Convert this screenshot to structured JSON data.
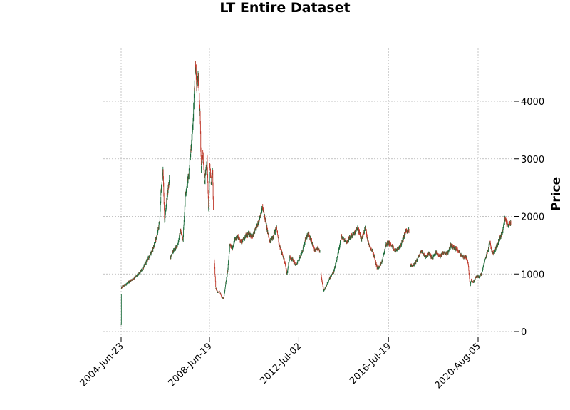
{
  "chart_data": {
    "type": "candlestick",
    "title": "LT Entire Dataset",
    "xlabel": "",
    "ylabel": "Price",
    "ylim": [
      -50,
      4900
    ],
    "y_ticks": [
      0,
      1000,
      2000,
      3000,
      4000
    ],
    "y_axis_position": "right",
    "x_range": [
      "2003-08-26",
      "2022-01-31"
    ],
    "x_ticks": [
      {
        "date": "2004-06-23",
        "label": "2004-Jun-23"
      },
      {
        "date": "2008-06-19",
        "label": "2008-Jun-19"
      },
      {
        "date": "2012-07-02",
        "label": "2012-Jul-02"
      },
      {
        "date": "2016-07-19",
        "label": "2016-Jul-19"
      },
      {
        "date": "2020-08-05",
        "label": "2020-Aug-05"
      }
    ],
    "grid": true,
    "colors": {
      "up": "#1b6b3a",
      "down": "#c0392b",
      "grid": "#b0b0b0"
    },
    "price_points": [
      [
        "2004-06-23",
        120,
        true
      ],
      [
        "2004-06-28",
        760,
        false
      ],
      [
        "2004-07-25",
        790,
        false
      ],
      [
        "2004-09-10",
        820,
        false
      ],
      [
        "2004-11-20",
        880,
        false
      ],
      [
        "2005-02-01",
        940,
        false
      ],
      [
        "2005-04-10",
        1000,
        false
      ],
      [
        "2005-06-20",
        1100,
        false
      ],
      [
        "2005-09-01",
        1250,
        false
      ],
      [
        "2005-11-15",
        1400,
        false
      ],
      [
        "2006-01-20",
        1600,
        false
      ],
      [
        "2006-03-20",
        1900,
        false
      ],
      [
        "2006-04-10",
        2400,
        false
      ],
      [
        "2006-05-15",
        2800,
        false
      ],
      [
        "2006-06-10",
        1900,
        false
      ],
      [
        "2006-07-15",
        2300,
        false
      ],
      [
        "2006-08-30",
        2650,
        false
      ],
      [
        "2006-09-10",
        1280,
        true
      ],
      [
        "2006-11-01",
        1400,
        false
      ],
      [
        "2007-01-10",
        1500,
        false
      ],
      [
        "2007-02-28",
        1750,
        false
      ],
      [
        "2007-04-10",
        1600,
        false
      ],
      [
        "2007-05-20",
        2400,
        false
      ],
      [
        "2007-07-10",
        2700,
        false
      ],
      [
        "2007-08-20",
        3200,
        false
      ],
      [
        "2007-09-15",
        3500,
        false
      ],
      [
        "2007-10-15",
        4200,
        false
      ],
      [
        "2007-11-01",
        4650,
        false
      ],
      [
        "2007-11-20",
        4300,
        false
      ],
      [
        "2007-12-20",
        4400,
        false
      ],
      [
        "2008-01-15",
        3800,
        false
      ],
      [
        "2008-02-05",
        2800,
        false
      ],
      [
        "2008-03-01",
        3100,
        false
      ],
      [
        "2008-04-01",
        2600,
        false
      ],
      [
        "2008-05-10",
        3000,
        false
      ],
      [
        "2008-06-05",
        2100,
        false
      ],
      [
        "2008-06-25",
        2900,
        false
      ],
      [
        "2008-07-15",
        2600,
        false
      ],
      [
        "2008-08-10",
        2800,
        false
      ],
      [
        "2008-08-25",
        1950,
        false
      ],
      [
        "2008-09-05",
        1250,
        true
      ],
      [
        "2008-10-01",
        750,
        false
      ],
      [
        "2008-11-01",
        680,
        false
      ],
      [
        "2008-12-01",
        700,
        false
      ],
      [
        "2009-01-05",
        600,
        false
      ],
      [
        "2009-02-10",
        580,
        false
      ],
      [
        "2009-03-15",
        850,
        false
      ],
      [
        "2009-04-15",
        1050,
        false
      ],
      [
        "2009-05-20",
        1500,
        false
      ],
      [
        "2009-07-01",
        1450,
        false
      ],
      [
        "2009-08-15",
        1600,
        false
      ],
      [
        "2009-10-01",
        1650,
        false
      ],
      [
        "2009-12-01",
        1550,
        false
      ],
      [
        "2010-02-01",
        1650,
        false
      ],
      [
        "2010-04-01",
        1700,
        false
      ],
      [
        "2010-06-01",
        1650,
        false
      ],
      [
        "2010-08-01",
        1800,
        false
      ],
      [
        "2010-10-01",
        2000,
        false
      ],
      [
        "2010-11-10",
        2150,
        false
      ],
      [
        "2010-12-15",
        2000,
        false
      ],
      [
        "2011-01-20",
        1800,
        false
      ],
      [
        "2011-03-10",
        1550,
        false
      ],
      [
        "2011-05-01",
        1650,
        false
      ],
      [
        "2011-07-01",
        1800,
        false
      ],
      [
        "2011-08-15",
        1500,
        false
      ],
      [
        "2011-10-01",
        1350,
        false
      ],
      [
        "2011-11-15",
        1200,
        false
      ],
      [
        "2011-12-20",
        1000,
        false
      ],
      [
        "2012-02-01",
        1300,
        false
      ],
      [
        "2012-03-20",
        1250,
        false
      ],
      [
        "2012-05-15",
        1150,
        false
      ],
      [
        "2012-07-01",
        1250,
        false
      ],
      [
        "2012-09-01",
        1400,
        false
      ],
      [
        "2012-10-15",
        1600,
        false
      ],
      [
        "2012-12-01",
        1700,
        false
      ],
      [
        "2013-02-01",
        1550,
        false
      ],
      [
        "2013-03-20",
        1400,
        false
      ],
      [
        "2013-05-01",
        1450,
        false
      ],
      [
        "2013-06-15",
        1380,
        false
      ],
      [
        "2013-07-01",
        1000,
        true
      ],
      [
        "2013-08-15",
        700,
        false
      ],
      [
        "2013-10-01",
        800,
        false
      ],
      [
        "2013-12-01",
        950,
        false
      ],
      [
        "2014-02-01",
        1050,
        false
      ],
      [
        "2014-04-01",
        1300,
        false
      ],
      [
        "2014-06-01",
        1650,
        false
      ],
      [
        "2014-07-15",
        1600,
        false
      ],
      [
        "2014-09-01",
        1550,
        false
      ],
      [
        "2014-11-01",
        1650,
        false
      ],
      [
        "2015-01-01",
        1700,
        false
      ],
      [
        "2015-03-01",
        1800,
        false
      ],
      [
        "2015-05-01",
        1600,
        false
      ],
      [
        "2015-07-01",
        1800,
        false
      ],
      [
        "2015-09-01",
        1500,
        false
      ],
      [
        "2015-11-01",
        1400,
        false
      ],
      [
        "2016-01-15",
        1100,
        false
      ],
      [
        "2016-03-01",
        1150,
        false
      ],
      [
        "2016-04-15",
        1250,
        false
      ],
      [
        "2016-06-01",
        1500,
        false
      ],
      [
        "2016-07-15",
        1550,
        false
      ],
      [
        "2016-09-01",
        1500,
        false
      ],
      [
        "2016-11-01",
        1400,
        false
      ],
      [
        "2017-01-01",
        1450,
        false
      ],
      [
        "2017-03-01",
        1550,
        false
      ],
      [
        "2017-05-01",
        1750,
        false
      ],
      [
        "2017-06-25",
        1750,
        false
      ],
      [
        "2017-07-15",
        1150,
        true
      ],
      [
        "2017-09-01",
        1150,
        false
      ],
      [
        "2017-11-01",
        1250,
        false
      ],
      [
        "2018-01-15",
        1400,
        false
      ],
      [
        "2018-03-15",
        1300,
        false
      ],
      [
        "2018-05-15",
        1350,
        false
      ],
      [
        "2018-07-15",
        1280,
        false
      ],
      [
        "2018-09-15",
        1380,
        false
      ],
      [
        "2018-11-15",
        1300,
        false
      ],
      [
        "2019-01-15",
        1380,
        false
      ],
      [
        "2019-03-15",
        1350,
        false
      ],
      [
        "2019-05-15",
        1500,
        false
      ],
      [
        "2019-07-15",
        1450,
        false
      ],
      [
        "2019-09-15",
        1400,
        false
      ],
      [
        "2019-11-15",
        1300,
        false
      ],
      [
        "2020-01-15",
        1300,
        false
      ],
      [
        "2020-02-20",
        1200,
        false
      ],
      [
        "2020-03-25",
        800,
        false
      ],
      [
        "2020-04-15",
        900,
        false
      ],
      [
        "2020-05-15",
        850,
        false
      ],
      [
        "2020-07-01",
        950,
        false
      ],
      [
        "2020-08-15",
        950,
        false
      ],
      [
        "2020-10-01",
        1000,
        false
      ],
      [
        "2020-11-15",
        1200,
        false
      ],
      [
        "2021-01-10",
        1400,
        false
      ],
      [
        "2021-02-15",
        1550,
        false
      ],
      [
        "2021-03-20",
        1400,
        false
      ],
      [
        "2021-04-20",
        1350,
        false
      ],
      [
        "2021-05-20",
        1450,
        false
      ],
      [
        "2021-06-20",
        1500,
        false
      ],
      [
        "2021-07-20",
        1600,
        false
      ],
      [
        "2021-09-15",
        1750,
        false
      ],
      [
        "2021-10-20",
        1950,
        false
      ],
      [
        "2021-12-10",
        1850,
        false
      ],
      [
        "2022-01-31",
        1900,
        false
      ]
    ]
  }
}
